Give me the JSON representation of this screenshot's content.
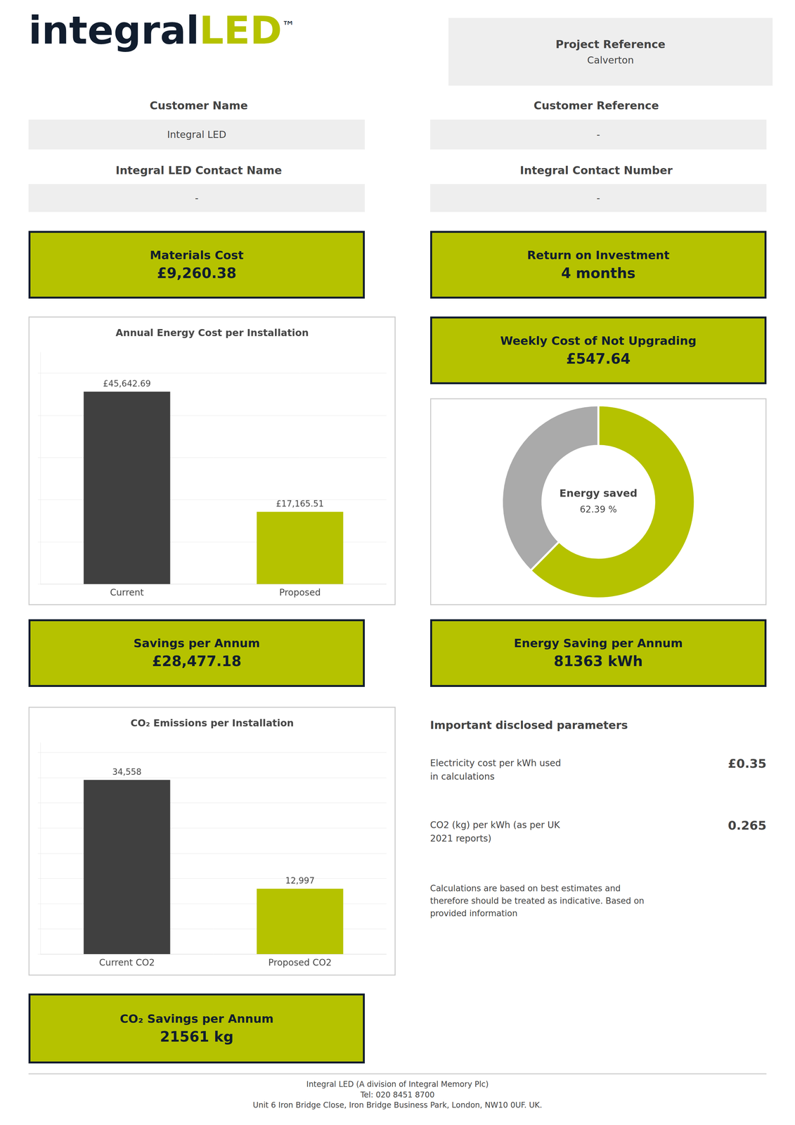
{
  "annotations": [
    "integral",
    "LED",
    "™",
    "Project Reference",
    "Calverton",
    "Customer Name",
    "Integral LED",
    "Customer Reference",
    "-",
    "Integral LED Contact Name",
    "-",
    "Integral Contact Number",
    "-",
    "Materials Cost",
    "£9,260.38",
    "Return on Investment",
    "4 months",
    "Weekly Cost of Not Upgrading",
    "£547.64",
    "Savings per Annum",
    "£28,477.18",
    "Energy Saving per Annum",
    "81363 kWh",
    "Important disclosed parameters",
    "Electricity cost per kWh used\nin calculations",
    "£0.35",
    "CO2 (kg) per kWh (as per UK\n2021 reports)",
    "0.265",
    "Calculations are based on best estimates and\ntherefore should be treated as indicative. Based on\nprovided information",
    "CO₂ Savings per Annum",
    "21561 kg",
    "Integral LED (A division of Integral Memory Plc)\nTel: 020 8451 8700\nUnit 6 Iron Bridge Close, Iron Bridge Business Park, London, NW10 0UF. UK."
  ],
  "chart_data": [
    {
      "type": "bar",
      "title": "Annual Energy Cost per Installation",
      "categories": [
        "Current",
        "Proposed"
      ],
      "values": [
        45642.69,
        17165.51
      ],
      "value_labels": [
        "£45,642.69",
        "£17,165.51"
      ],
      "colors": [
        "#404040",
        "#b5c200"
      ],
      "ylim": [
        0,
        55000
      ],
      "yticks": [
        0,
        10000,
        20000,
        30000,
        40000,
        50000
      ],
      "grid": true,
      "data_labels": true,
      "tick_labels": "x"
    },
    {
      "type": "doughnut",
      "values": [
        62.39,
        37.61
      ],
      "colors": [
        "#b5c200",
        "#aaaaaa"
      ],
      "annotations": [
        "Energy saved",
        "62.39 %"
      ]
    },
    {
      "type": "bar",
      "title": "CO₂ Emissions per Installation",
      "categories": [
        "Current CO2",
        "Proposed CO2"
      ],
      "values": [
        34558,
        12997
      ],
      "value_labels": [
        "34,558",
        "12,997"
      ],
      "colors": [
        "#404040",
        "#b5c200"
      ],
      "ylim": [
        0,
        42000
      ],
      "yticks": [
        0,
        5000,
        10000,
        15000,
        20000,
        25000,
        30000,
        35000,
        40000
      ],
      "grid": true,
      "data_labels": true,
      "tick_labels": "x"
    }
  ]
}
